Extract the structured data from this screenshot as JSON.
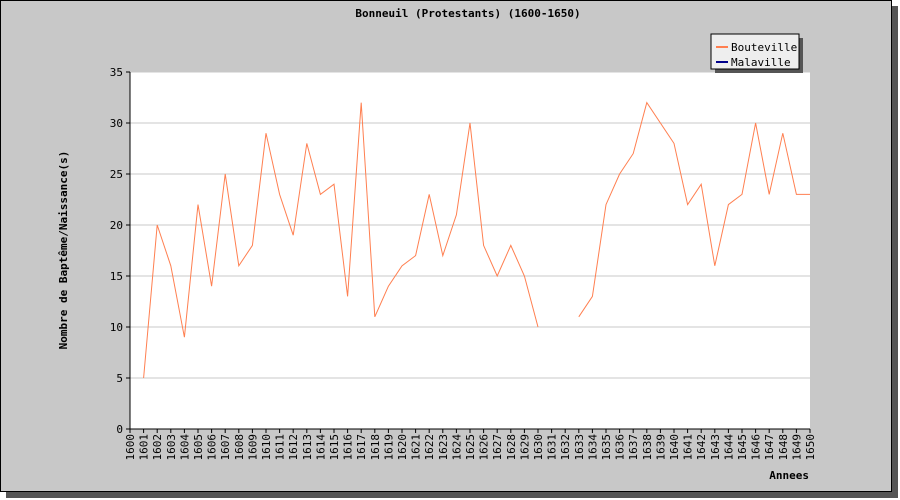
{
  "chart_data": {
    "type": "line",
    "title": "Bonneuil (Protestants) (1600-1650)",
    "xlabel": "Annees",
    "ylabel": "Nombre de Baptême/Naissance(s)",
    "x": [
      1600,
      1601,
      1602,
      1603,
      1604,
      1605,
      1606,
      1607,
      1608,
      1609,
      1610,
      1611,
      1612,
      1613,
      1614,
      1615,
      1616,
      1617,
      1618,
      1619,
      1620,
      1621,
      1622,
      1623,
      1624,
      1625,
      1626,
      1627,
      1628,
      1629,
      1630,
      1631,
      1632,
      1633,
      1634,
      1635,
      1636,
      1637,
      1638,
      1639,
      1640,
      1641,
      1642,
      1643,
      1644,
      1645,
      1646,
      1647,
      1648,
      1649,
      1650
    ],
    "ylim": [
      0,
      35
    ],
    "yticks": [
      0,
      5,
      10,
      15,
      20,
      25,
      30,
      35
    ],
    "grid": true,
    "legend_position": "top-right",
    "series": [
      {
        "name": "Bouteville",
        "color": "#ff7f50",
        "values": [
          null,
          5,
          20,
          16,
          9,
          22,
          14,
          25,
          16,
          18,
          29,
          23,
          19,
          28,
          23,
          24,
          13,
          32,
          11,
          14,
          16,
          17,
          23,
          17,
          21,
          30,
          18,
          15,
          18,
          15,
          10,
          null,
          null,
          11,
          13,
          22,
          25,
          27,
          32,
          30,
          28,
          22,
          24,
          16,
          22,
          23,
          30,
          23,
          29,
          23,
          23
        ]
      },
      {
        "name": "Malaville",
        "color": "#00008b",
        "values": [
          null,
          null,
          null,
          null,
          null,
          null,
          null,
          null,
          null,
          null,
          null,
          null,
          null,
          null,
          null,
          null,
          null,
          null,
          null,
          null,
          null,
          null,
          null,
          null,
          null,
          null,
          null,
          null,
          null,
          null,
          null,
          null,
          null,
          null,
          null,
          null,
          null,
          null,
          null,
          null,
          null,
          null,
          null,
          null,
          null,
          null,
          null,
          null,
          null,
          null,
          null
        ]
      }
    ]
  }
}
